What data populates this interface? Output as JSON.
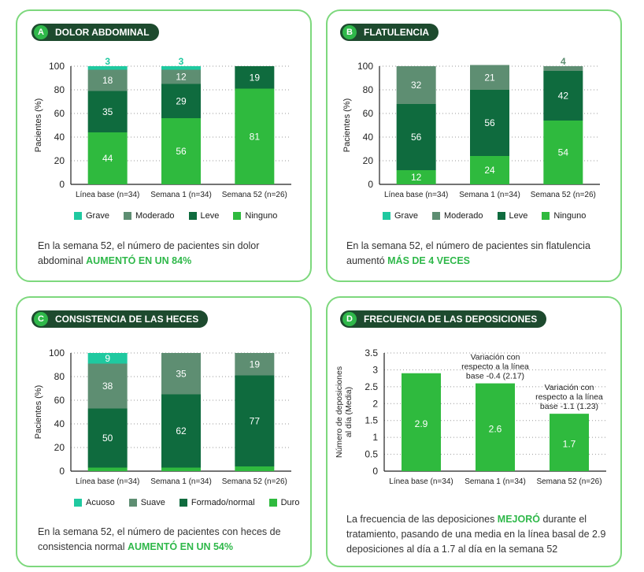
{
  "colors": {
    "grave": "#1fc9a0",
    "moderado": "#5e8e72",
    "leve": "#0f6b3e",
    "ninguno": "#2fba3e",
    "accent": "#2fb84a"
  },
  "panels": {
    "A": {
      "letter": "A",
      "title": "DOLOR ABDOMINAL",
      "legend": [
        "Grave",
        "Moderado",
        "Leve",
        "Ninguno"
      ],
      "caption_pre": "En la semana 52, el número de pacientes sin dolor abdominal ",
      "caption_hl": "AUMENTÓ EN UN 84%",
      "caption_post": ""
    },
    "B": {
      "letter": "B",
      "title": "FLATULENCIA",
      "legend": [
        "Grave",
        "Moderado",
        "Leve",
        "Ninguno"
      ],
      "caption_pre": "En la semana 52, el número de pacientes sin flatulencia aumentó ",
      "caption_hl": "MÁS DE 4 VECES",
      "caption_post": ""
    },
    "C": {
      "letter": "C",
      "title": "CONSISTENCIA DE LAS HECES",
      "legend": [
        "Acuoso",
        "Suave",
        "Formado/normal",
        "Duro"
      ],
      "caption_pre": "En la semana 52, el número de pacientes con heces de consistencia normal ",
      "caption_hl": "AUMENTÓ EN UN 54%",
      "caption_post": ""
    },
    "D": {
      "letter": "D",
      "title": "FRECUENCIA DE LAS DEPOSICIONES",
      "caption_pre": "La frecuencia de las deposiciones ",
      "caption_hl": "MEJORÓ",
      "caption_post": " durante el tratamiento, pasando de una media en la línea basal de 2.9 deposiciones al día a 1.7 al día en la semana 52"
    }
  },
  "chart_data": [
    {
      "type": "bar",
      "stacked": true,
      "panel": "A",
      "categories": [
        "Línea base (n=34)",
        "Semana 1 (n=34)",
        "Semana 52 (n=26)"
      ],
      "ylabel": "Pacientes (%)",
      "ylim": [
        0,
        100
      ],
      "yticks": [
        0,
        20,
        40,
        60,
        80,
        100
      ],
      "series": [
        {
          "name": "Ninguno",
          "values": [
            44,
            56,
            81
          ]
        },
        {
          "name": "Leve",
          "values": [
            35,
            29,
            19
          ]
        },
        {
          "name": "Moderado",
          "values": [
            18,
            12,
            0
          ]
        },
        {
          "name": "Grave",
          "values": [
            3,
            3,
            0
          ]
        }
      ]
    },
    {
      "type": "bar",
      "stacked": true,
      "panel": "B",
      "categories": [
        "Línea base (n=34)",
        "Semana 1 (n=34)",
        "Semana 52 (n=26)"
      ],
      "ylabel": "Pacientes (%)",
      "ylim": [
        0,
        100
      ],
      "yticks": [
        0,
        20,
        40,
        60,
        80,
        100
      ],
      "series": [
        {
          "name": "Ninguno",
          "values": [
            12,
            24,
            54
          ]
        },
        {
          "name": "Leve",
          "values": [
            56,
            56,
            42
          ]
        },
        {
          "name": "Moderado",
          "values": [
            32,
            21,
            4
          ]
        },
        {
          "name": "Grave",
          "values": [
            0,
            0,
            0
          ]
        }
      ]
    },
    {
      "type": "bar",
      "stacked": true,
      "panel": "C",
      "categories": [
        "Línea base (n=34)",
        "Semana 1 (n=34)",
        "Semana 52 (n=26)"
      ],
      "ylabel": "Pacientes (%)",
      "ylim": [
        0,
        100
      ],
      "yticks": [
        0,
        20,
        40,
        60,
        80,
        100
      ],
      "series": [
        {
          "name": "Duro",
          "values": [
            3,
            3,
            4
          ]
        },
        {
          "name": "Formado/normal",
          "values": [
            50,
            62,
            77
          ]
        },
        {
          "name": "Suave",
          "values": [
            38,
            35,
            19
          ]
        },
        {
          "name": "Acuoso",
          "values": [
            9,
            0,
            0
          ]
        }
      ]
    },
    {
      "type": "bar",
      "panel": "D",
      "categories": [
        "Línea base (n=34)",
        "Semana 1 (n=34)",
        "Semana 52 (n=26)"
      ],
      "ylabel": "Número de deposiciones al día (Media)",
      "ylim": [
        0,
        3.5
      ],
      "yticks": [
        0,
        0.5,
        1,
        1.5,
        2,
        2.5,
        3,
        3.5
      ],
      "values": [
        2.9,
        2.6,
        1.7
      ],
      "annotations": [
        {
          "category": "Semana 1 (n=34)",
          "text": [
            "Variación con",
            "respecto a la línea",
            "base -0.4 (2.17)"
          ]
        },
        {
          "category": "Semana 52 (n=26)",
          "text": [
            "Variación con",
            "respecto a la línea",
            "base -1.1 (1.23)"
          ]
        }
      ]
    }
  ]
}
